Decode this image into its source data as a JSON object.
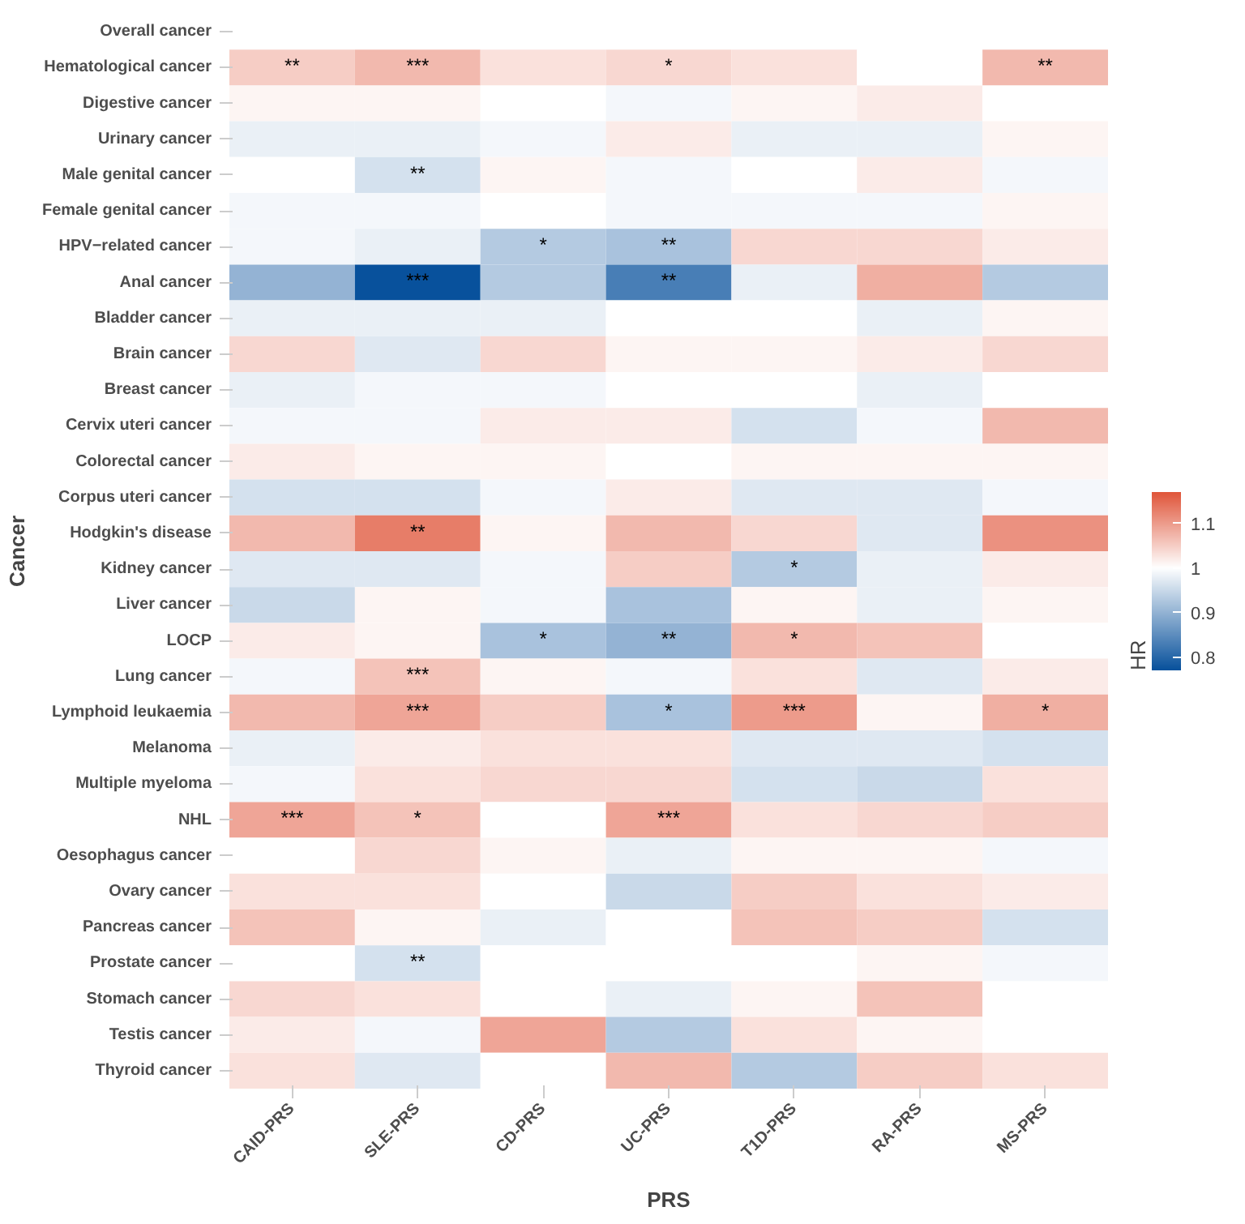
{
  "chart_data": {
    "type": "heatmap",
    "xlabel": "PRS",
    "ylabel": "Cancer",
    "clabel": "HR",
    "categories": [
      "CAID-PRS",
      "SLE-PRS",
      "CD-PRS",
      "UC-PRS",
      "T1D-PRS",
      "RA-PRS",
      "MS-PRS"
    ],
    "y_categories": [
      "Overall cancer",
      "Hematological cancer",
      "Digestive cancer",
      "Urinary cancer",
      "Male genital cancer",
      "Female genital cancer",
      "HPV−related cancer",
      "Anal cancer",
      "Bladder cancer",
      "Brain cancer",
      "Breast cancer",
      "Cervix uteri cancer",
      "Colorectal cancer",
      "Corpus uteri cancer",
      "Hodgkin's disease",
      "Kidney cancer",
      "Liver cancer",
      "LOCP",
      "Lung cancer",
      "Lymphoid leukaemia",
      "Melanoma",
      "Multiple myeloma",
      "NHL",
      "Oesophagus cancer",
      "Ovary cancer",
      "Pancreas cancer",
      "Prostate cancer",
      "Stomach cancer",
      "Testis cancer",
      "Thyroid cancer"
    ],
    "cells": [
      [
        1.0,
        1.0,
        1.0,
        1.0,
        1.0,
        1.0,
        1.0
      ],
      [
        1.05,
        1.07,
        1.03,
        1.04,
        1.03,
        1.0,
        1.07
      ],
      [
        1.01,
        1.01,
        1.0,
        0.99,
        1.01,
        1.02,
        1.0
      ],
      [
        0.98,
        0.98,
        0.99,
        1.02,
        0.98,
        0.98,
        1.01
      ],
      [
        1.0,
        0.96,
        1.01,
        0.99,
        1.0,
        1.02,
        0.99
      ],
      [
        0.99,
        0.99,
        1.0,
        0.99,
        0.99,
        0.99,
        1.01
      ],
      [
        0.99,
        0.98,
        0.93,
        0.92,
        1.04,
        1.04,
        1.02
      ],
      [
        0.9,
        0.77,
        0.93,
        0.83,
        0.98,
        1.08,
        0.93
      ],
      [
        0.98,
        0.98,
        0.98,
        1.0,
        1.0,
        0.98,
        1.01
      ],
      [
        1.04,
        0.97,
        1.04,
        1.01,
        1.01,
        1.02,
        1.04
      ],
      [
        0.98,
        0.99,
        0.99,
        1.0,
        1.0,
        0.98,
        1.0
      ],
      [
        0.99,
        0.99,
        1.02,
        1.02,
        0.96,
        0.99,
        1.07
      ],
      [
        1.02,
        1.01,
        1.01,
        1.0,
        1.01,
        1.01,
        1.01
      ],
      [
        0.96,
        0.96,
        0.99,
        1.02,
        0.97,
        0.97,
        0.99
      ],
      [
        1.07,
        1.13,
        1.01,
        1.07,
        1.04,
        0.97,
        1.11
      ],
      [
        0.97,
        0.97,
        0.99,
        1.05,
        0.93,
        0.98,
        1.02
      ],
      [
        0.95,
        1.01,
        0.99,
        0.92,
        1.01,
        0.98,
        1.01
      ],
      [
        1.02,
        1.01,
        0.92,
        0.9,
        1.07,
        1.06,
        1.0
      ],
      [
        0.99,
        1.06,
        1.01,
        0.99,
        1.03,
        0.97,
        1.02
      ],
      [
        1.07,
        1.09,
        1.05,
        0.92,
        1.1,
        1.01,
        1.08
      ],
      [
        0.98,
        1.02,
        1.03,
        1.03,
        0.97,
        0.97,
        0.96
      ],
      [
        0.99,
        1.03,
        1.04,
        1.04,
        0.96,
        0.95,
        1.03
      ],
      [
        1.09,
        1.06,
        1.0,
        1.09,
        1.03,
        1.04,
        1.05
      ],
      [
        1.0,
        1.04,
        1.01,
        0.98,
        1.01,
        1.01,
        0.99
      ],
      [
        1.03,
        1.03,
        1.0,
        0.95,
        1.05,
        1.03,
        1.02
      ],
      [
        1.06,
        1.01,
        0.98,
        1.0,
        1.06,
        1.05,
        0.96
      ],
      [
        1.0,
        0.96,
        1.0,
        1.0,
        1.0,
        1.01,
        0.99
      ],
      [
        1.04,
        1.03,
        1.0,
        0.98,
        1.01,
        1.06,
        1.0
      ],
      [
        1.02,
        0.99,
        1.09,
        0.93,
        1.03,
        1.01,
        1.0
      ],
      [
        1.03,
        0.97,
        1.0,
        1.07,
        0.93,
        1.05,
        1.03
      ]
    ],
    "cell_labels": [
      [
        null,
        null,
        null,
        null,
        null,
        null,
        null
      ],
      [
        "**",
        "***",
        null,
        "*",
        null,
        null,
        "**"
      ],
      [
        null,
        null,
        null,
        null,
        null,
        null,
        null
      ],
      [
        null,
        null,
        null,
        null,
        null,
        null,
        null
      ],
      [
        null,
        "**",
        null,
        null,
        null,
        null,
        null
      ],
      [
        null,
        null,
        null,
        null,
        null,
        null,
        null
      ],
      [
        null,
        null,
        "*",
        "**",
        null,
        null,
        null
      ],
      [
        null,
        "***",
        null,
        "**",
        null,
        null,
        null
      ],
      [
        null,
        null,
        null,
        null,
        null,
        null,
        null
      ],
      [
        null,
        null,
        null,
        null,
        null,
        null,
        null
      ],
      [
        null,
        null,
        null,
        null,
        null,
        null,
        null
      ],
      [
        null,
        null,
        null,
        null,
        null,
        null,
        null
      ],
      [
        null,
        null,
        null,
        null,
        null,
        null,
        null
      ],
      [
        null,
        null,
        null,
        null,
        null,
        null,
        null
      ],
      [
        null,
        "**",
        null,
        null,
        null,
        null,
        null
      ],
      [
        null,
        null,
        null,
        null,
        "*",
        null,
        null
      ],
      [
        null,
        null,
        null,
        null,
        null,
        null,
        null
      ],
      [
        null,
        null,
        "*",
        "**",
        "*",
        null,
        null
      ],
      [
        null,
        "***",
        null,
        null,
        null,
        null,
        null
      ],
      [
        null,
        "***",
        null,
        "*",
        "***",
        null,
        "*"
      ],
      [
        null,
        null,
        null,
        null,
        null,
        null,
        null
      ],
      [
        null,
        null,
        null,
        null,
        null,
        null,
        null
      ],
      [
        "***",
        "*",
        null,
        "***",
        null,
        null,
        null
      ],
      [
        null,
        null,
        null,
        null,
        null,
        null,
        null
      ],
      [
        null,
        null,
        null,
        null,
        null,
        null,
        null
      ],
      [
        null,
        null,
        null,
        null,
        null,
        null,
        null
      ],
      [
        null,
        "**",
        null,
        null,
        null,
        null,
        null
      ],
      [
        null,
        null,
        null,
        null,
        null,
        null,
        null
      ],
      [
        null,
        null,
        null,
        null,
        null,
        null,
        null
      ],
      [
        null,
        null,
        null,
        null,
        null,
        null,
        null
      ]
    ],
    "clim": [
      0.77,
      1.17
    ],
    "cticks": [
      0.8,
      0.9,
      1.0,
      1.1
    ],
    "colors": [
      "#08519c",
      "#ffffff",
      "#e0553a"
    ]
  }
}
